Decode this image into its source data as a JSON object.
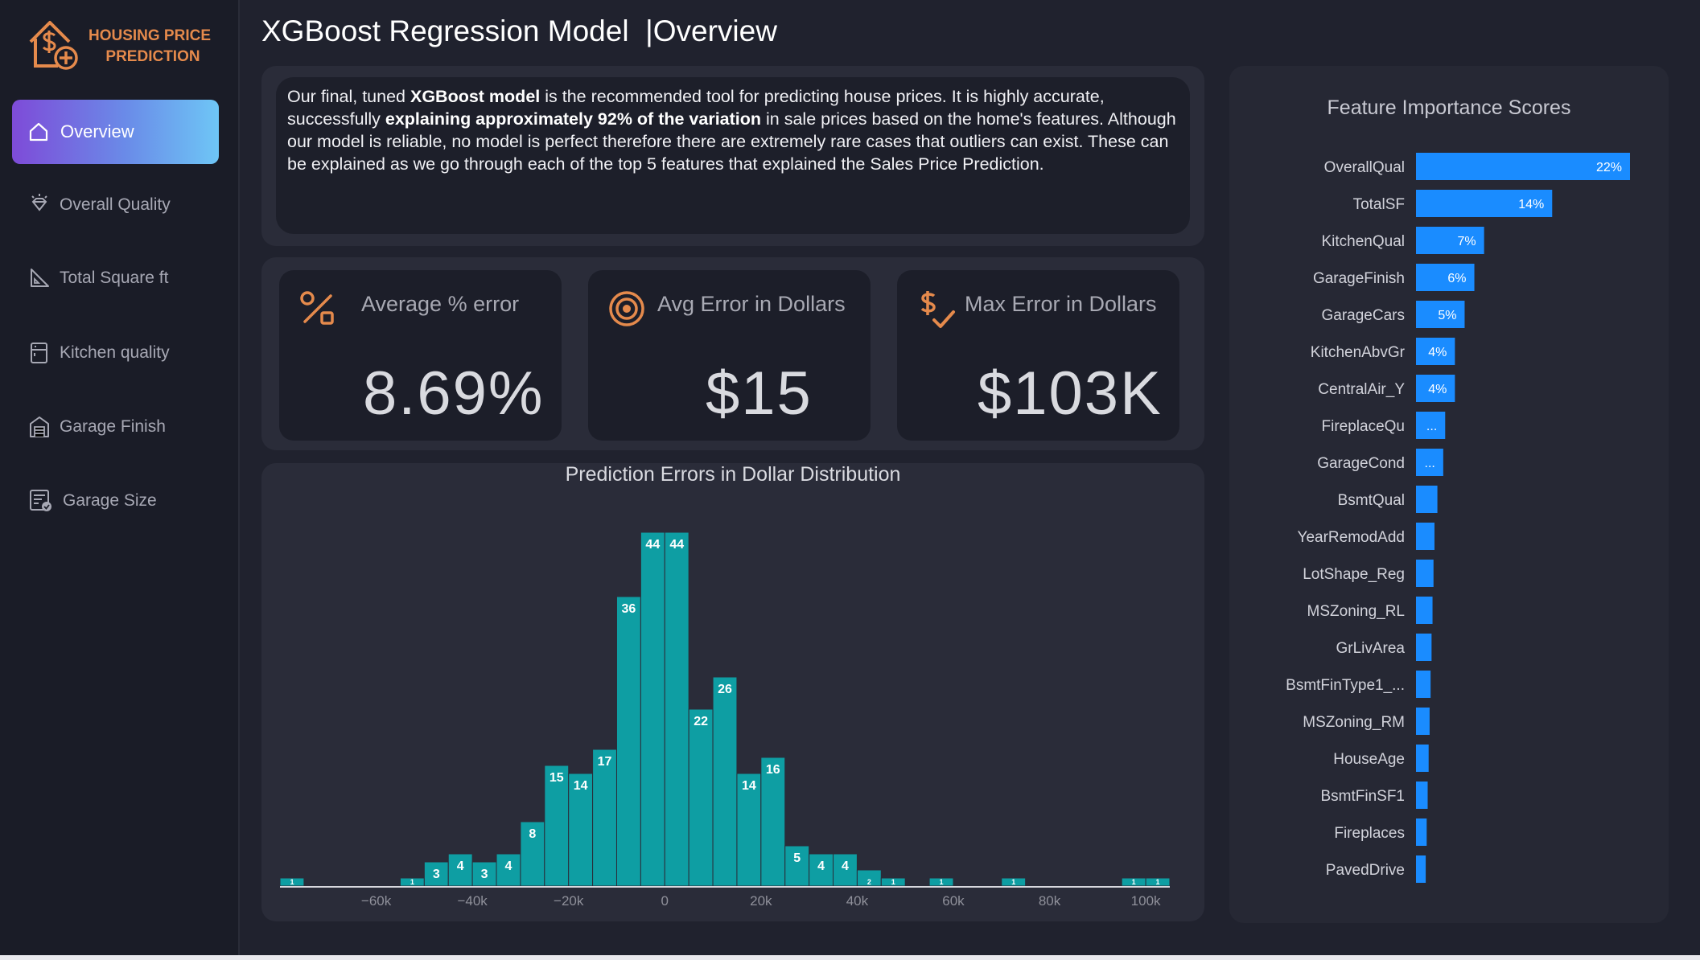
{
  "brand": {
    "line1": "HOUSING PRICE",
    "line2": "PREDICTION",
    "accent": "#e58a4c"
  },
  "sidebar": {
    "items": [
      {
        "label": "Overview",
        "icon": "home-icon",
        "active": true
      },
      {
        "label": "Overall Quality",
        "icon": "diamond-icon"
      },
      {
        "label": "Total Square ft",
        "icon": "triangle-ruler-icon"
      },
      {
        "label": "Kitchen quality",
        "icon": "kitchen-icon"
      },
      {
        "label": "Garage Finish",
        "icon": "garage-icon"
      },
      {
        "label": "Garage Size",
        "icon": "garage-size-icon"
      }
    ]
  },
  "header": {
    "title": "XGBoost Regression Model  |Overview"
  },
  "intro": {
    "t1": "Our final, tuned ",
    "b1": "XGBoost model",
    "t2": " is the recommended tool for predicting house prices. It is highly accurate, successfully ",
    "b2": "explaining approximately 92% of the variation",
    "t3": " in sale prices based on the home's features. Although our model is reliable, no model is perfect therefore there are extremely rare cases that outliers can exist. These can be explained as we go through each of the top 5 features that explained the Sales Price Prediction."
  },
  "kpis": [
    {
      "label": "Average % error",
      "value": "8.69%",
      "icon": "percent-icon"
    },
    {
      "label": "Avg Error in Dollars",
      "value": "$15",
      "icon": "target-icon"
    },
    {
      "label": "Max Error in Dollars",
      "value": "$103K",
      "icon": "dollar-check-icon"
    }
  ],
  "chart_data": [
    {
      "type": "bar",
      "title": "Prediction Errors in Dollar Distribution",
      "bin_width": 5000,
      "x_ticks": [
        "−60k",
        "−40k",
        "−20k",
        "0",
        "20k",
        "40k",
        "60k",
        "80k",
        "100k"
      ],
      "x_tick_values": [
        -60000,
        -40000,
        -20000,
        0,
        20000,
        40000,
        60000,
        80000,
        100000
      ],
      "xlim": [
        -80000,
        105000
      ],
      "ylim": [
        0,
        45
      ],
      "color": "#0e9ea3",
      "bins": [
        {
          "start": -80000,
          "count": 1
        },
        {
          "start": -55000,
          "count": 1
        },
        {
          "start": -50000,
          "count": 3
        },
        {
          "start": -45000,
          "count": 4
        },
        {
          "start": -40000,
          "count": 3
        },
        {
          "start": -35000,
          "count": 4
        },
        {
          "start": -30000,
          "count": 8
        },
        {
          "start": -25000,
          "count": 15
        },
        {
          "start": -20000,
          "count": 14
        },
        {
          "start": -15000,
          "count": 17
        },
        {
          "start": -10000,
          "count": 36
        },
        {
          "start": -5000,
          "count": 44
        },
        {
          "start": 0,
          "count": 44
        },
        {
          "start": 5000,
          "count": 22
        },
        {
          "start": 10000,
          "count": 26
        },
        {
          "start": 15000,
          "count": 14
        },
        {
          "start": 20000,
          "count": 16
        },
        {
          "start": 25000,
          "count": 5
        },
        {
          "start": 30000,
          "count": 4
        },
        {
          "start": 35000,
          "count": 4
        },
        {
          "start": 40000,
          "count": 2
        },
        {
          "start": 45000,
          "count": 1
        },
        {
          "start": 55000,
          "count": 1
        },
        {
          "start": 70000,
          "count": 1
        },
        {
          "start": 95000,
          "count": 1
        },
        {
          "start": 100000,
          "count": 1
        }
      ]
    },
    {
      "type": "bar",
      "orientation": "horizontal",
      "title": "Feature Importance Scores",
      "color": "#1a8cff",
      "categories": [
        "OverallQual",
        "TotalSF",
        "KitchenQual",
        "GarageFinish",
        "GarageCars",
        "KitchenAbvGr",
        "CentralAir_Y",
        "FireplaceQu",
        "GarageCond",
        "BsmtQual",
        "YearRemodAdd",
        "LotShape_Reg",
        "MSZoning_RL",
        "GrLivArea",
        "BsmtFinType1_...",
        "MSZoning_RM",
        "HouseAge",
        "BsmtFinSF1",
        "Fireplaces",
        "PavedDrive"
      ],
      "values": [
        22,
        14,
        7,
        6,
        5,
        4,
        4,
        3,
        2.8,
        2.2,
        1.9,
        1.8,
        1.7,
        1.6,
        1.5,
        1.4,
        1.3,
        1.2,
        1.1,
        1.0
      ],
      "labels": [
        "22%",
        "14%",
        "7%",
        "6%",
        "5%",
        "4%",
        "4%",
        "...",
        "...",
        "",
        "",
        "",
        "",
        "",
        "",
        "",
        "",
        "",
        "",
        ""
      ],
      "xlim": [
        0,
        22
      ]
    }
  ]
}
